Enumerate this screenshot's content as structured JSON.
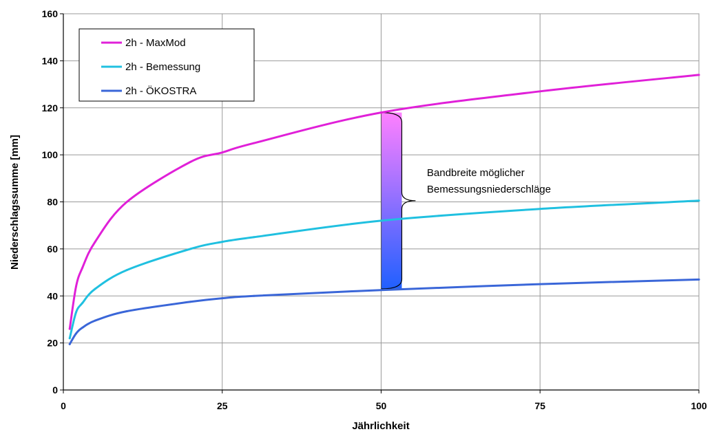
{
  "chart_data": {
    "type": "line",
    "xlabel": "Jährlichkeit",
    "ylabel": "Niederschlagssumme [mm]",
    "xlim": [
      0,
      100
    ],
    "ylim": [
      0,
      160
    ],
    "xticks": [
      0,
      25,
      50,
      75,
      100
    ],
    "yticks": [
      0,
      20,
      40,
      60,
      80,
      100,
      120,
      140,
      160
    ],
    "grid": true,
    "legend_position": "top-left",
    "series": [
      {
        "name": "2h - MaxMod",
        "color": "#e020d8",
        "x": [
          1,
          2,
          3,
          5,
          10,
          20,
          25,
          30,
          50,
          75,
          100
        ],
        "y": [
          26,
          44,
          52,
          63,
          80,
          97,
          101,
          105,
          118,
          127,
          134
        ]
      },
      {
        "name": "2h - Bemessung",
        "color": "#20c0e0",
        "x": [
          1,
          2,
          3,
          5,
          10,
          20,
          25,
          30,
          50,
          75,
          100
        ],
        "y": [
          22,
          33,
          37,
          43,
          51,
          60,
          63,
          65,
          72,
          77,
          80.5
        ]
      },
      {
        "name": "2h - ÖKOSTRA",
        "color": "#3a66d8",
        "x": [
          1,
          2,
          3,
          5,
          10,
          20,
          25,
          30,
          50,
          75,
          100
        ],
        "y": [
          19.5,
          24,
          26.5,
          29.5,
          33.5,
          37.5,
          39,
          40,
          42.5,
          45,
          47
        ]
      }
    ],
    "annotation": {
      "line1": "Bandbreite möglicher",
      "line2": "Bemessungsniederschläge",
      "x": 50,
      "y_top": 118,
      "y_bottom": 43,
      "gradient_top": "#ff80ff",
      "gradient_bottom": "#2060ff"
    }
  }
}
